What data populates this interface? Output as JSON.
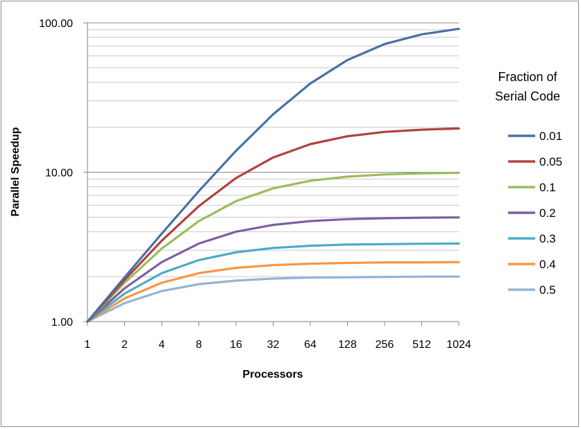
{
  "chart_data": {
    "type": "line",
    "title": "",
    "xlabel": "Processors",
    "ylabel": "Parallel Speedup",
    "x_scale": "log2",
    "y_scale": "log10",
    "ylim": [
      1,
      100
    ],
    "grid": true,
    "legend_position": "right",
    "legend_title": [
      "Fraction of",
      "Serial Code"
    ],
    "categories": [
      "1",
      "2",
      "4",
      "8",
      "16",
      "32",
      "64",
      "128",
      "256",
      "512",
      "1024"
    ],
    "x": [
      1,
      2,
      4,
      8,
      16,
      32,
      64,
      128,
      256,
      512,
      1024
    ],
    "y_ticks": [
      "1.00",
      "10.00",
      "100.00"
    ],
    "series": [
      {
        "name": "0.01",
        "color": "#4a6fa5",
        "values": [
          1.0,
          1.98,
          3.88,
          7.48,
          13.91,
          24.43,
          39.26,
          56.39,
          72.11,
          83.78,
          91.18
        ]
      },
      {
        "name": "0.05",
        "color": "#b0413e",
        "values": [
          1.0,
          1.9,
          3.48,
          5.93,
          9.14,
          12.55,
          15.42,
          17.41,
          18.62,
          19.28,
          19.63
        ]
      },
      {
        "name": "0.1",
        "color": "#9bbb59",
        "values": [
          1.0,
          1.82,
          3.08,
          4.71,
          6.4,
          7.8,
          8.77,
          9.34,
          9.66,
          9.83,
          9.91
        ]
      },
      {
        "name": "0.2",
        "color": "#7d5fa0",
        "values": [
          1.0,
          1.67,
          2.5,
          3.33,
          4.0,
          4.44,
          4.71,
          4.85,
          4.92,
          4.96,
          4.98
        ]
      },
      {
        "name": "0.3",
        "color": "#4aacc6",
        "values": [
          1.0,
          1.54,
          2.11,
          2.58,
          2.91,
          3.11,
          3.22,
          3.28,
          3.3,
          3.32,
          3.33
        ]
      },
      {
        "name": "0.4",
        "color": "#f79646",
        "values": [
          1.0,
          1.43,
          1.82,
          2.11,
          2.29,
          2.39,
          2.44,
          2.47,
          2.49,
          2.49,
          2.5
        ]
      },
      {
        "name": "0.5",
        "color": "#95b3d7",
        "values": [
          1.0,
          1.33,
          1.6,
          1.78,
          1.88,
          1.94,
          1.97,
          1.98,
          1.99,
          2.0,
          2.0
        ]
      }
    ]
  }
}
